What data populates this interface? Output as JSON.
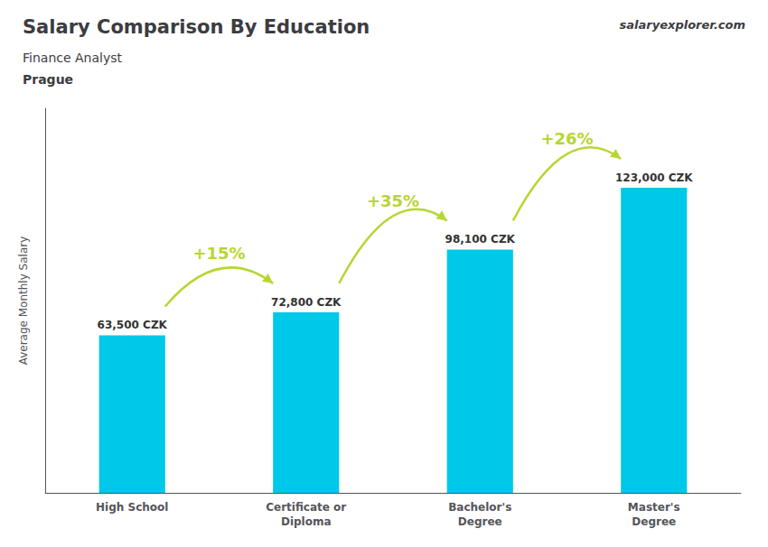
{
  "chart_data": {
    "type": "bar",
    "title": "Salary Comparison By Education",
    "subtitle": "Finance Analyst",
    "annotations": [
      "Prague",
      "salaryexplorer.com"
    ],
    "ylabel": "Average Monthly Salary",
    "categories": [
      "High School",
      "Certificate or\nDiploma",
      "Bachelor's\nDegree",
      "Master's\nDegree"
    ],
    "values": [
      63500,
      72800,
      98100,
      123000
    ],
    "value_labels": [
      "63,500 CZK",
      "72,800 CZK",
      "98,100 CZK",
      "123,000 CZK"
    ],
    "pct_labels": [
      "+15%",
      "+35%",
      "+26%"
    ],
    "data_labels": true,
    "color": "#00c8e8",
    "ylim": [
      0,
      155000
    ],
    "yticks": [],
    "tick_labels": "x",
    "grid": false
  }
}
